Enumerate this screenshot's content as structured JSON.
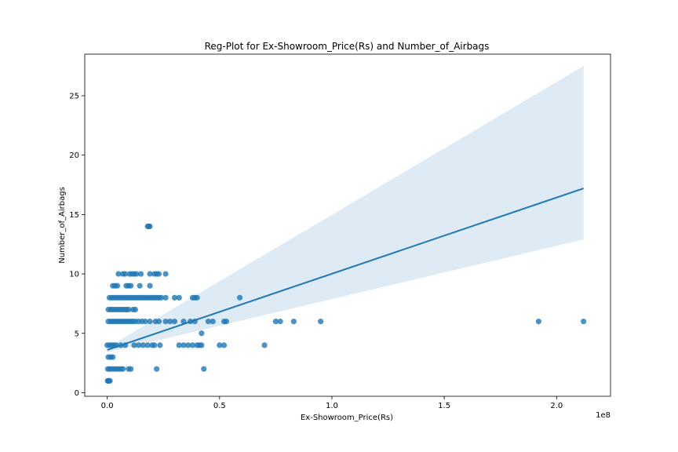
{
  "chart_data": {
    "type": "scatter",
    "title": "Reg-Plot for Ex-Showroom_Price(Rs) and Number_of_Airbags",
    "xlabel": "Ex-Showroom_Price(Rs)",
    "ylabel": "Number_of_Airbags",
    "x_offset_label": "1e8",
    "xlim": [
      -0.1,
      2.24
    ],
    "ylim": [
      -0.3,
      28.5
    ],
    "xticks": [
      0.0,
      0.5,
      1.0,
      1.5,
      2.0
    ],
    "xtick_labels": [
      "0.0",
      "0.5",
      "1.0",
      "1.5",
      "2.0"
    ],
    "yticks": [
      0,
      5,
      10,
      15,
      20,
      25
    ],
    "ytick_labels": [
      "0",
      "5",
      "10",
      "15",
      "20",
      "25"
    ],
    "grid": false,
    "colors": {
      "points": "#1f77b4",
      "line": "#1f77b4",
      "band": "#1f77b4"
    },
    "regression": {
      "x": [
        0.0,
        2.12
      ],
      "y": [
        3.6,
        17.2
      ]
    },
    "confidence_band": {
      "x": [
        0.0,
        2.12
      ],
      "lower": [
        3.4,
        12.9
      ],
      "upper": [
        3.8,
        27.5
      ]
    },
    "points": [
      {
        "x": 0.002,
        "y": 1
      },
      {
        "x": 0.005,
        "y": 1
      },
      {
        "x": 0.008,
        "y": 1
      },
      {
        "x": 0.012,
        "y": 1
      },
      {
        "x": 0.003,
        "y": 2
      },
      {
        "x": 0.01,
        "y": 2
      },
      {
        "x": 0.02,
        "y": 2
      },
      {
        "x": 0.03,
        "y": 2
      },
      {
        "x": 0.04,
        "y": 2
      },
      {
        "x": 0.05,
        "y": 2
      },
      {
        "x": 0.06,
        "y": 2
      },
      {
        "x": 0.07,
        "y": 2
      },
      {
        "x": 0.095,
        "y": 2
      },
      {
        "x": 0.105,
        "y": 2
      },
      {
        "x": 0.22,
        "y": 2
      },
      {
        "x": 0.43,
        "y": 2
      },
      {
        "x": 0.005,
        "y": 3
      },
      {
        "x": 0.015,
        "y": 3
      },
      {
        "x": 0.025,
        "y": 3
      },
      {
        "x": 0.0,
        "y": 4
      },
      {
        "x": 0.01,
        "y": 4
      },
      {
        "x": 0.02,
        "y": 4
      },
      {
        "x": 0.03,
        "y": 4
      },
      {
        "x": 0.04,
        "y": 4
      },
      {
        "x": 0.06,
        "y": 4
      },
      {
        "x": 0.08,
        "y": 4
      },
      {
        "x": 0.12,
        "y": 4
      },
      {
        "x": 0.14,
        "y": 4
      },
      {
        "x": 0.16,
        "y": 4
      },
      {
        "x": 0.18,
        "y": 4
      },
      {
        "x": 0.2,
        "y": 4
      },
      {
        "x": 0.21,
        "y": 4
      },
      {
        "x": 0.235,
        "y": 4
      },
      {
        "x": 0.32,
        "y": 4
      },
      {
        "x": 0.34,
        "y": 4
      },
      {
        "x": 0.36,
        "y": 4
      },
      {
        "x": 0.38,
        "y": 4
      },
      {
        "x": 0.4,
        "y": 4
      },
      {
        "x": 0.41,
        "y": 4
      },
      {
        "x": 0.42,
        "y": 4
      },
      {
        "x": 0.5,
        "y": 4
      },
      {
        "x": 0.52,
        "y": 4
      },
      {
        "x": 0.7,
        "y": 4
      },
      {
        "x": 0.42,
        "y": 5
      },
      {
        "x": 0.005,
        "y": 6
      },
      {
        "x": 0.015,
        "y": 6
      },
      {
        "x": 0.025,
        "y": 6
      },
      {
        "x": 0.035,
        "y": 6
      },
      {
        "x": 0.045,
        "y": 6
      },
      {
        "x": 0.055,
        "y": 6
      },
      {
        "x": 0.065,
        "y": 6
      },
      {
        "x": 0.075,
        "y": 6
      },
      {
        "x": 0.085,
        "y": 6
      },
      {
        "x": 0.095,
        "y": 6
      },
      {
        "x": 0.105,
        "y": 6
      },
      {
        "x": 0.115,
        "y": 6
      },
      {
        "x": 0.125,
        "y": 6
      },
      {
        "x": 0.14,
        "y": 6
      },
      {
        "x": 0.155,
        "y": 6
      },
      {
        "x": 0.17,
        "y": 6
      },
      {
        "x": 0.19,
        "y": 6
      },
      {
        "x": 0.215,
        "y": 6
      },
      {
        "x": 0.23,
        "y": 6
      },
      {
        "x": 0.26,
        "y": 6
      },
      {
        "x": 0.28,
        "y": 6
      },
      {
        "x": 0.3,
        "y": 6
      },
      {
        "x": 0.34,
        "y": 6
      },
      {
        "x": 0.37,
        "y": 6
      },
      {
        "x": 0.39,
        "y": 6
      },
      {
        "x": 0.45,
        "y": 6
      },
      {
        "x": 0.47,
        "y": 6
      },
      {
        "x": 0.52,
        "y": 6
      },
      {
        "x": 0.53,
        "y": 6
      },
      {
        "x": 0.75,
        "y": 6
      },
      {
        "x": 0.77,
        "y": 6
      },
      {
        "x": 0.83,
        "y": 6
      },
      {
        "x": 0.95,
        "y": 6
      },
      {
        "x": 1.92,
        "y": 6
      },
      {
        "x": 2.12,
        "y": 6
      },
      {
        "x": 0.005,
        "y": 7
      },
      {
        "x": 0.015,
        "y": 7
      },
      {
        "x": 0.025,
        "y": 7
      },
      {
        "x": 0.035,
        "y": 7
      },
      {
        "x": 0.045,
        "y": 7
      },
      {
        "x": 0.055,
        "y": 7
      },
      {
        "x": 0.065,
        "y": 7
      },
      {
        "x": 0.075,
        "y": 7
      },
      {
        "x": 0.085,
        "y": 7
      },
      {
        "x": 0.095,
        "y": 7
      },
      {
        "x": 0.115,
        "y": 7
      },
      {
        "x": 0.125,
        "y": 7
      },
      {
        "x": 0.01,
        "y": 8
      },
      {
        "x": 0.02,
        "y": 8
      },
      {
        "x": 0.03,
        "y": 8
      },
      {
        "x": 0.04,
        "y": 8
      },
      {
        "x": 0.05,
        "y": 8
      },
      {
        "x": 0.06,
        "y": 8
      },
      {
        "x": 0.07,
        "y": 8
      },
      {
        "x": 0.08,
        "y": 8
      },
      {
        "x": 0.09,
        "y": 8
      },
      {
        "x": 0.1,
        "y": 8
      },
      {
        "x": 0.11,
        "y": 8
      },
      {
        "x": 0.12,
        "y": 8
      },
      {
        "x": 0.13,
        "y": 8
      },
      {
        "x": 0.14,
        "y": 8
      },
      {
        "x": 0.15,
        "y": 8
      },
      {
        "x": 0.16,
        "y": 8
      },
      {
        "x": 0.17,
        "y": 8
      },
      {
        "x": 0.18,
        "y": 8
      },
      {
        "x": 0.19,
        "y": 8
      },
      {
        "x": 0.2,
        "y": 8
      },
      {
        "x": 0.21,
        "y": 8
      },
      {
        "x": 0.22,
        "y": 8
      },
      {
        "x": 0.23,
        "y": 8
      },
      {
        "x": 0.24,
        "y": 8
      },
      {
        "x": 0.26,
        "y": 8
      },
      {
        "x": 0.3,
        "y": 8
      },
      {
        "x": 0.32,
        "y": 8
      },
      {
        "x": 0.38,
        "y": 8
      },
      {
        "x": 0.39,
        "y": 8
      },
      {
        "x": 0.4,
        "y": 8
      },
      {
        "x": 0.59,
        "y": 8
      },
      {
        "x": 0.025,
        "y": 9
      },
      {
        "x": 0.035,
        "y": 9
      },
      {
        "x": 0.045,
        "y": 9
      },
      {
        "x": 0.085,
        "y": 9
      },
      {
        "x": 0.095,
        "y": 9
      },
      {
        "x": 0.105,
        "y": 9
      },
      {
        "x": 0.145,
        "y": 9
      },
      {
        "x": 0.19,
        "y": 9
      },
      {
        "x": 0.05,
        "y": 10
      },
      {
        "x": 0.07,
        "y": 10
      },
      {
        "x": 0.08,
        "y": 10
      },
      {
        "x": 0.1,
        "y": 10
      },
      {
        "x": 0.11,
        "y": 10
      },
      {
        "x": 0.12,
        "y": 10
      },
      {
        "x": 0.13,
        "y": 10
      },
      {
        "x": 0.15,
        "y": 10
      },
      {
        "x": 0.19,
        "y": 10
      },
      {
        "x": 0.21,
        "y": 10
      },
      {
        "x": 0.22,
        "y": 10
      },
      {
        "x": 0.23,
        "y": 10
      },
      {
        "x": 0.26,
        "y": 10
      },
      {
        "x": 0.18,
        "y": 14
      },
      {
        "x": 0.185,
        "y": 14
      },
      {
        "x": 0.19,
        "y": 14
      }
    ]
  }
}
